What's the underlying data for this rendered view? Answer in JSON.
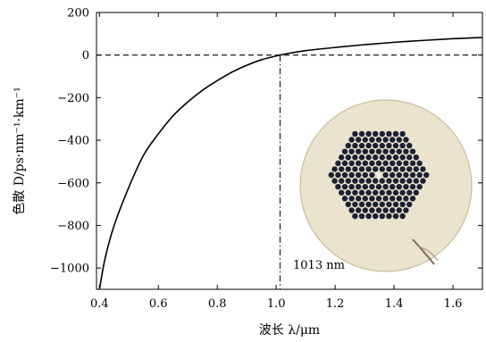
{
  "chart_data": {
    "type": "line",
    "title": "",
    "xlabel": "波长 λ/μm",
    "ylabel": "色散 D/ps·nm⁻¹·km⁻¹",
    "xlim": [
      0.39,
      1.7
    ],
    "ylim": [
      -1100,
      200
    ],
    "xticks": [
      0.4,
      0.6,
      0.8,
      1.0,
      1.2,
      1.4,
      1.6
    ],
    "xtick_labels": [
      "0.4",
      "0.6",
      "0.8",
      "1.0",
      "1.2",
      "1.4",
      "1.6"
    ],
    "yticks": [
      -1000,
      -800,
      -600,
      -400,
      -200,
      0,
      200
    ],
    "ytick_labels": [
      "−1000",
      "−800",
      "−600",
      "−400",
      "−200",
      "0",
      "200"
    ],
    "series": [
      {
        "x": [
          0.4,
          0.42,
          0.45,
          0.5,
          0.55,
          0.6,
          0.65,
          0.7,
          0.75,
          0.8,
          0.85,
          0.9,
          0.95,
          1.013,
          1.05,
          1.1,
          1.2,
          1.3,
          1.4,
          1.5,
          1.6,
          1.7
        ],
        "y": [
          -1100,
          -950,
          -800,
          -620,
          -470,
          -370,
          -285,
          -220,
          -165,
          -120,
          -80,
          -48,
          -22,
          0,
          10,
          21,
          36,
          49,
          60,
          69,
          77,
          83
        ],
        "color": "#000000"
      }
    ],
    "reference_lines": [
      {
        "orientation": "horizontal",
        "y": 0,
        "style": "dashed"
      },
      {
        "orientation": "vertical",
        "x": 1.013,
        "style": "dash-dot"
      }
    ],
    "annotation": {
      "text": "1013 nm",
      "x": 1.013
    },
    "inset": "fiber cross-section photograph",
    "grid": false
  }
}
